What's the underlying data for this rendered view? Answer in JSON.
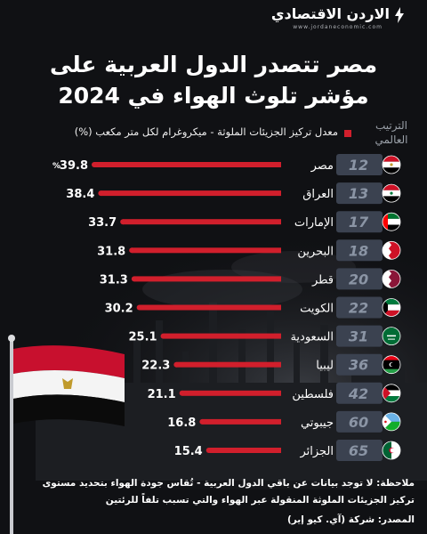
{
  "brand": {
    "name": "الاردن الاقتصادي",
    "site": "www.jordaneconomic.com"
  },
  "title_line1": "مصر تتصدر الدول العربية على",
  "title_line2": "مؤشر تلوث الهواء في 2024",
  "legend_label": "معدل تركيز الجزيئات الملوثة - ميكروغرام لكل متر مكعب (%)",
  "rank_header": "الترتيب العالمي",
  "colors": {
    "bar": "#d11f2c",
    "rank_box": "#3b4250",
    "background": "#101114"
  },
  "chart_data": {
    "type": "bar",
    "orientation": "horizontal",
    "value_suffix_first": "%",
    "categories": [
      "مصر",
      "العراق",
      "الإمارات",
      "البحرين",
      "قطر",
      "الكويت",
      "السعودية",
      "ليبيا",
      "فلسطين",
      "جيبوتي",
      "الجزائر"
    ],
    "values": [
      39.8,
      38.4,
      33.7,
      31.8,
      31.3,
      30.2,
      25.1,
      22.3,
      21.1,
      16.8,
      15.4
    ],
    "ranks": [
      12,
      13,
      17,
      18,
      20,
      22,
      31,
      36,
      42,
      60,
      65
    ],
    "flags": [
      "egypt-flag",
      "iraq-flag",
      "uae-flag",
      "bahrain-flag",
      "qatar-flag",
      "kuwait-flag",
      "saudi-flag",
      "libya-flag",
      "palestine-flag",
      "djibouti-flag",
      "algeria-flag"
    ]
  },
  "note_line1": "ملاحظة: لا توجد بيانات عن باقي الدول العربية - تُقاس جودة الهواء بتحديد مستوى",
  "note_line2": "تركيز الجزيئات الملوثة المنقولة عبر الهواء والتي تسبب تلفاً للرئتين",
  "source": "المصدر: شركة (آي. كيو إير)"
}
